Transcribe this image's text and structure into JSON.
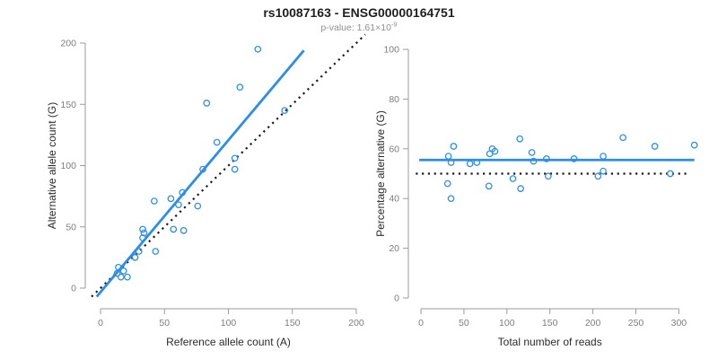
{
  "header": {
    "title": "rs10087163 - ENSG00000164751",
    "pvalue_label": "p-value: 1.61×10",
    "pvalue_exponent": "-9"
  },
  "colors": {
    "accent_blue": "#2d8ee8",
    "line_black": "#1a1a1a",
    "axis_line_gray": "#9b9b9b",
    "tick_label_gray": "#7d7d7d",
    "axis_title_color": "#2b2b2b"
  },
  "chart_data": [
    {
      "type": "scatter",
      "panel": "left",
      "xlabel": "Reference allele count (A)",
      "ylabel": "Alternative allele count (G)",
      "xlim": [
        0,
        200
      ],
      "ylim": [
        0,
        200
      ],
      "xticks": [
        0,
        50,
        100,
        150,
        200
      ],
      "yticks": [
        0,
        50,
        100,
        150,
        200
      ],
      "grid": false,
      "legend": null,
      "points": [
        [
          13,
          12
        ],
        [
          14,
          17
        ],
        [
          16,
          9
        ],
        [
          18,
          14
        ],
        [
          21,
          9
        ],
        [
          27,
          25
        ],
        [
          30,
          30
        ],
        [
          43,
          30
        ],
        [
          33,
          41
        ],
        [
          34,
          45
        ],
        [
          33,
          48
        ],
        [
          57,
          48
        ],
        [
          65,
          47
        ],
        [
          42,
          71
        ],
        [
          55,
          73
        ],
        [
          61,
          68
        ],
        [
          64,
          78
        ],
        [
          76,
          67
        ],
        [
          80,
          97
        ],
        [
          105,
          97
        ],
        [
          91,
          119
        ],
        [
          105,
          106
        ],
        [
          83,
          151
        ],
        [
          109,
          164
        ],
        [
          123,
          195
        ],
        [
          144,
          145
        ]
      ],
      "lines": [
        {
          "name": "identity-line",
          "x1": -7,
          "y1": -7,
          "x2": 207,
          "y2": 207,
          "style": "dotted",
          "color": "#1a1a1a"
        },
        {
          "name": "regression-line",
          "x1": -3,
          "y1": -7,
          "x2": 159,
          "y2": 194,
          "style": "solid",
          "color": "#2d8ee8"
        }
      ]
    },
    {
      "type": "scatter",
      "panel": "right",
      "xlabel": "Total number of reads",
      "ylabel": "Percentage alternative (G)",
      "xlim": [
        0,
        320
      ],
      "ylim": [
        0,
        100
      ],
      "xticks": [
        0,
        50,
        100,
        150,
        200,
        250,
        300
      ],
      "yticks": [
        0,
        20,
        40,
        60,
        80,
        100
      ],
      "grid": false,
      "legend": null,
      "points": [
        [
          31,
          46
        ],
        [
          32,
          57
        ],
        [
          35,
          54.5
        ],
        [
          35,
          40
        ],
        [
          38,
          61
        ],
        [
          57,
          54
        ],
        [
          65,
          54.5
        ],
        [
          79,
          45
        ],
        [
          80,
          58
        ],
        [
          83,
          60
        ],
        [
          86,
          59
        ],
        [
          107,
          48
        ],
        [
          115,
          64
        ],
        [
          116,
          44
        ],
        [
          129,
          58.5
        ],
        [
          131,
          55
        ],
        [
          146,
          56
        ],
        [
          148,
          49
        ],
        [
          178,
          56
        ],
        [
          206,
          49
        ],
        [
          212,
          57
        ],
        [
          212,
          51
        ],
        [
          235,
          64.5
        ],
        [
          272,
          61
        ],
        [
          290,
          50
        ],
        [
          318,
          61.5
        ]
      ],
      "lines": [
        {
          "name": "expected-50-line",
          "x1": -6,
          "y1": 50,
          "x2": 312,
          "y2": 50,
          "style": "dotted",
          "color": "#1a1a1a"
        },
        {
          "name": "mean-percentage-line",
          "x1": -2,
          "y1": 55.5,
          "x2": 318,
          "y2": 55.5,
          "style": "solid",
          "color": "#2d8ee8"
        }
      ]
    }
  ]
}
